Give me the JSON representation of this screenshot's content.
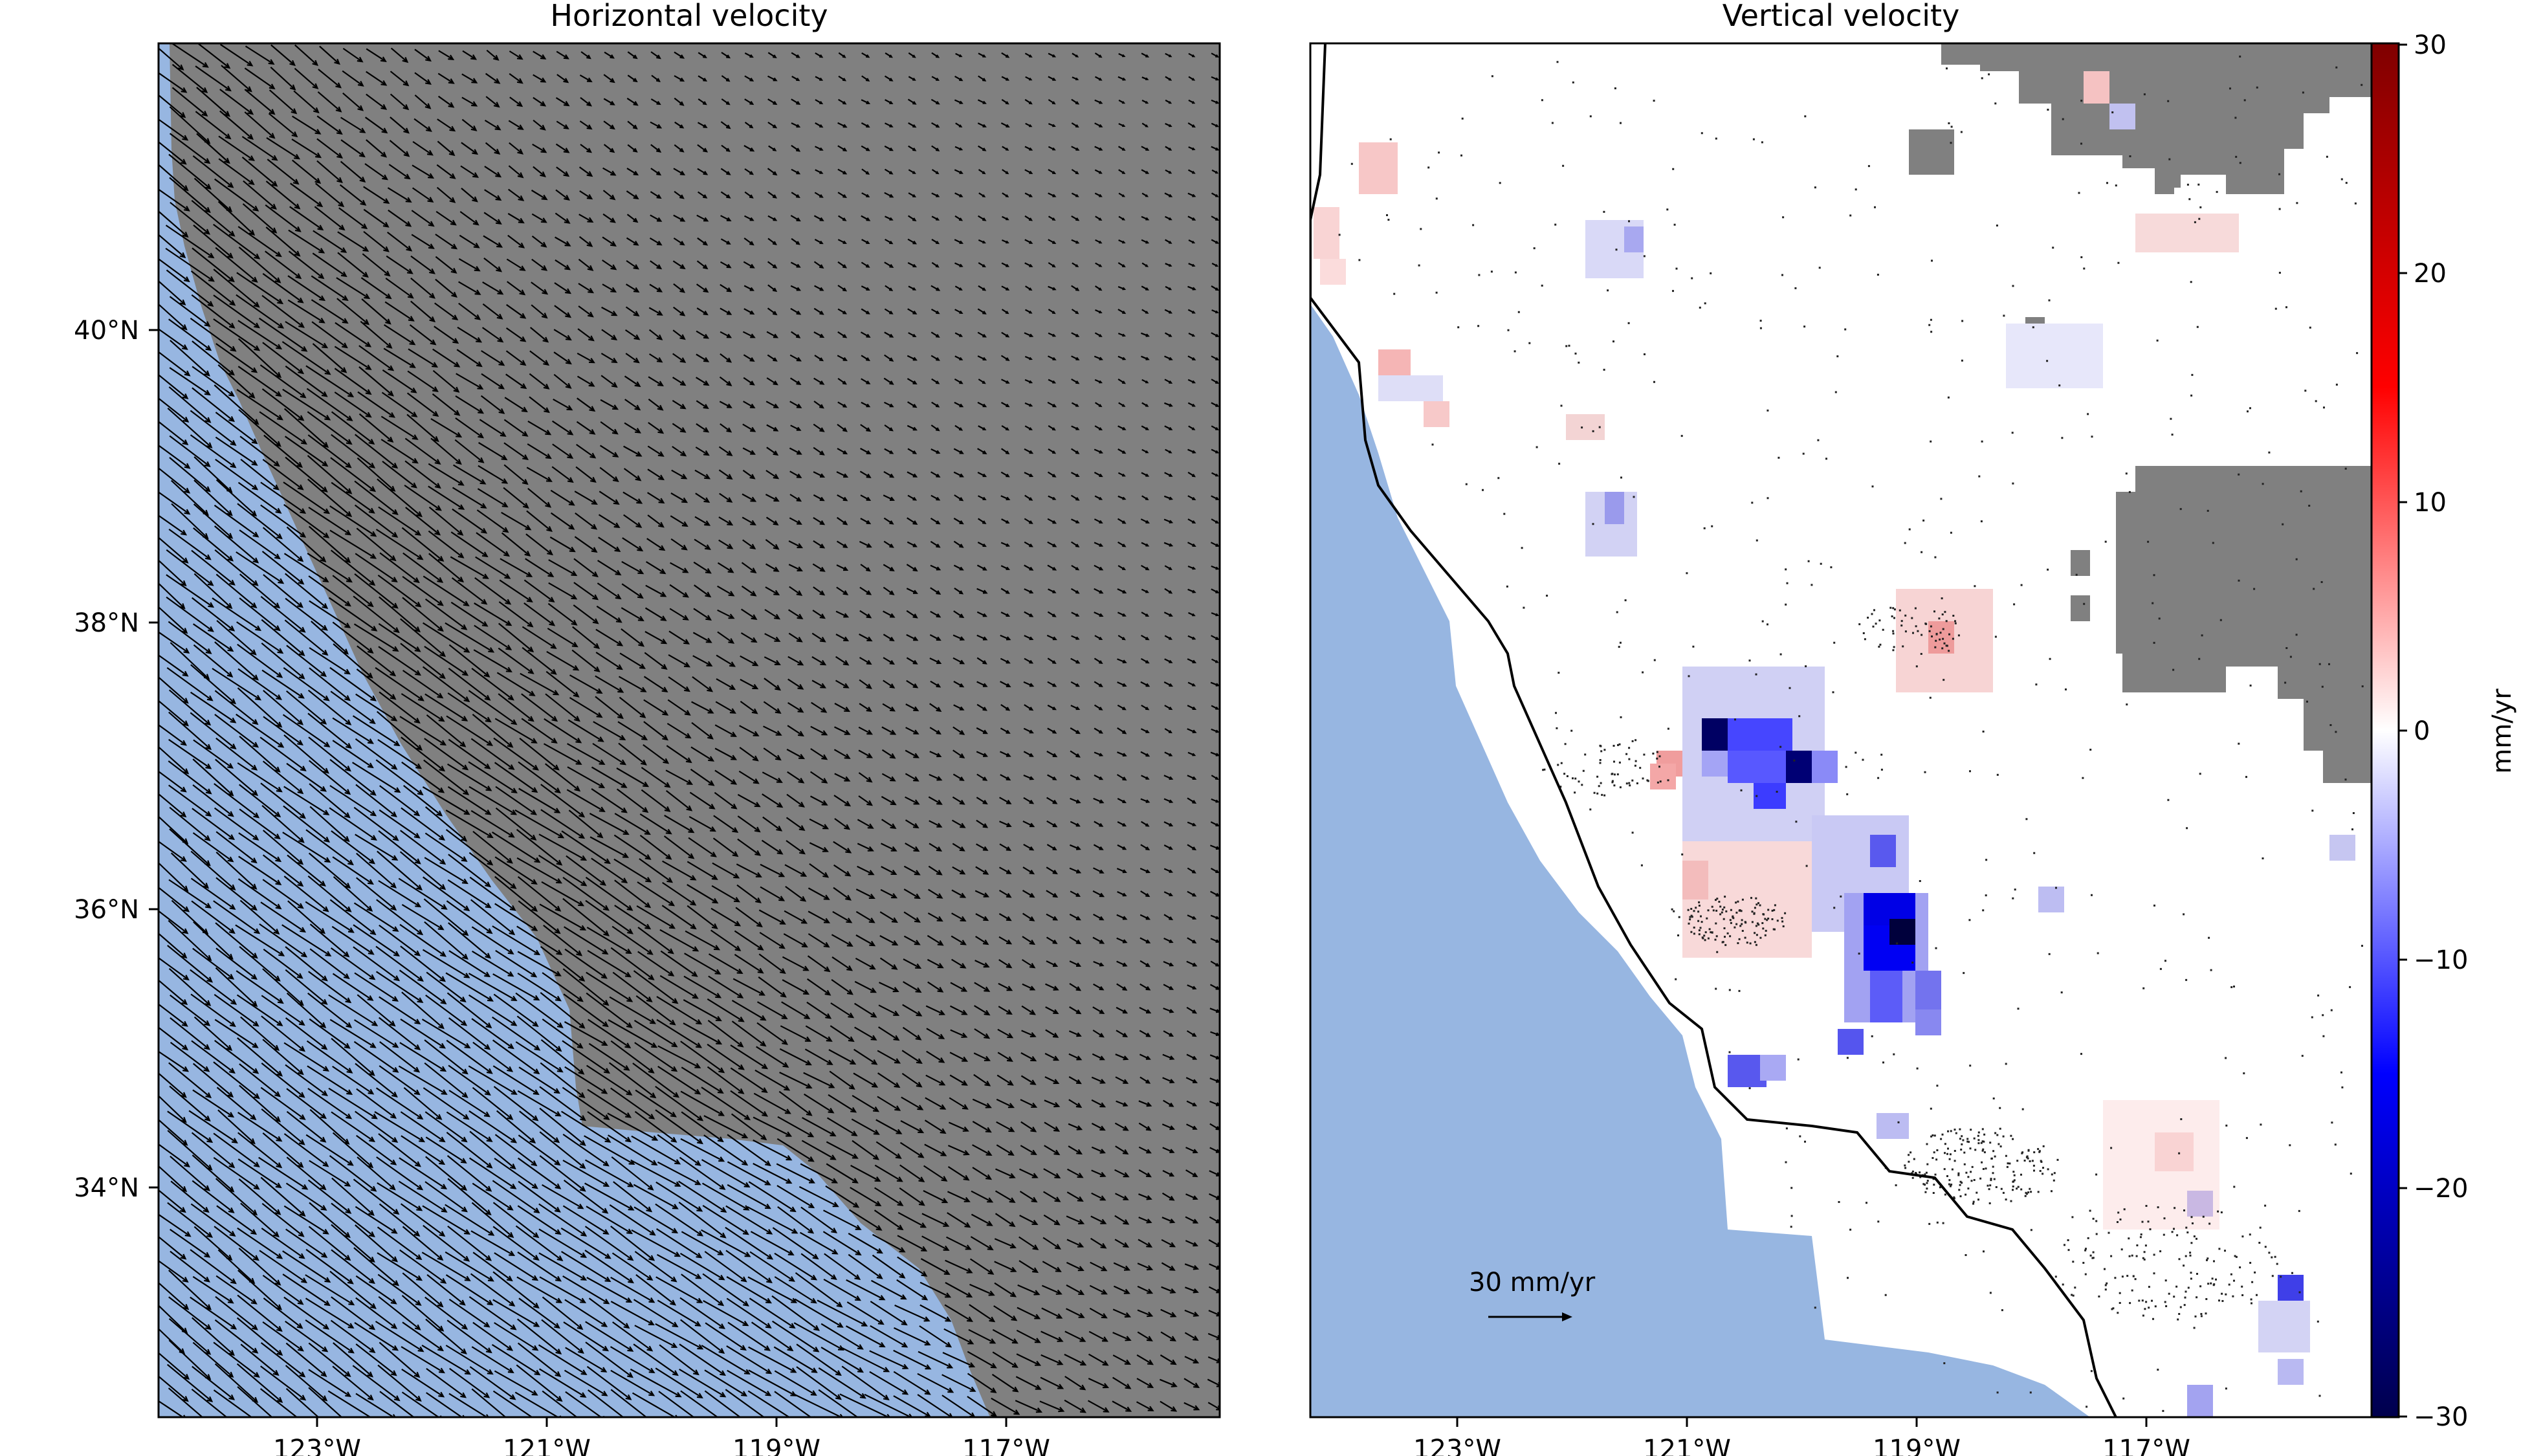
{
  "colors": {
    "ocean": "#97b6e1",
    "land": "#808080",
    "arrow": "#000000",
    "station": "#222222",
    "colormap": "seismic"
  },
  "panels": [
    {
      "title": "Horizontal velocity",
      "lon_range": [
        -124.4,
        -115.2
      ],
      "lat_range": [
        32.4,
        41.9
      ],
      "lon_ticks": [
        "123°W",
        "121°W",
        "119°W",
        "117°W"
      ],
      "lat_ticks": [
        "40°N",
        "38°N",
        "36°N",
        "34°N"
      ]
    },
    {
      "title": "Vertical velocity",
      "lon_range": [
        -124.4,
        -115.2
      ],
      "lat_range": [
        32.4,
        41.9
      ],
      "lon_ticks": [
        "123°W",
        "121°W",
        "119°W",
        "117°W"
      ]
    }
  ],
  "legend": {
    "scale_label": "30 mm/yr"
  },
  "colorbar": {
    "label": "mm/yr",
    "range": [
      -30,
      30
    ],
    "ticks": [
      "30",
      "20",
      "10",
      "0",
      "−10",
      "−20",
      "−30"
    ]
  }
}
